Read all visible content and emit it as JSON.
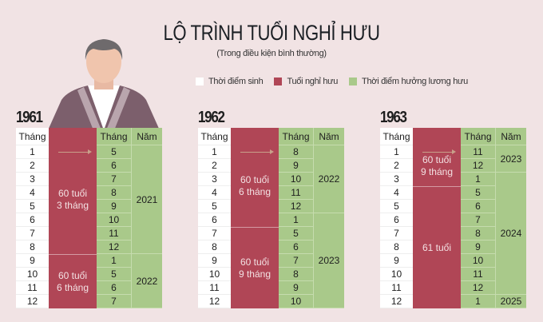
{
  "title": "LỘ TRÌNH TUỔI NGHỈ HƯU",
  "subtitle": "(Trong điều kiện bình thường)",
  "legend": [
    {
      "label": "Thời điểm sinh",
      "color": "#ffffff"
    },
    {
      "label": "Tuổi nghỉ hưu",
      "color": "#b04656"
    },
    {
      "label": "Thời điểm hưởng lương hưu",
      "color": "#a9c98a"
    }
  ],
  "headers": {
    "birth_month": "Tháng",
    "pension_month": "Tháng",
    "pension_year": "Năm"
  },
  "tables": [
    {
      "year": "1961",
      "birth_months": [
        "1",
        "2",
        "3",
        "4",
        "5",
        "6",
        "7",
        "8",
        "9",
        "10",
        "11",
        "12"
      ],
      "pension_months": [
        "5",
        "6",
        "7",
        "8",
        "9",
        "10",
        "11",
        "12",
        "1",
        "5",
        "6",
        "7"
      ],
      "ages": [
        {
          "label": "60 tuổi 3 tháng",
          "rows": 8
        },
        {
          "label": "60 tuổi 6 tháng",
          "rows": 4
        }
      ],
      "years": [
        {
          "label": "2021",
          "rows": 8
        },
        {
          "label": "2022",
          "rows": 4
        }
      ]
    },
    {
      "year": "1962",
      "birth_months": [
        "1",
        "2",
        "3",
        "4",
        "5",
        "6",
        "7",
        "8",
        "9",
        "10",
        "11",
        "12"
      ],
      "pension_months": [
        "8",
        "9",
        "10",
        "11",
        "12",
        "1",
        "5",
        "6",
        "7",
        "8",
        "9",
        "10"
      ],
      "ages": [
        {
          "label": "60 tuổi 6 tháng",
          "rows": 6
        },
        {
          "label": "60 tuổi 9 tháng",
          "rows": 6
        }
      ],
      "years": [
        {
          "label": "2022",
          "rows": 5
        },
        {
          "label": "2023",
          "rows": 7
        }
      ]
    },
    {
      "year": "1963",
      "birth_months": [
        "1",
        "2",
        "3",
        "4",
        "5",
        "6",
        "7",
        "8",
        "9",
        "10",
        "11",
        "12"
      ],
      "pension_months": [
        "11",
        "12",
        "1",
        "5",
        "6",
        "7",
        "8",
        "9",
        "10",
        "11",
        "12",
        "1"
      ],
      "ages": [
        {
          "label": "60 tuổi 9 tháng",
          "rows": 3
        },
        {
          "label": "61 tuổi",
          "rows": 9
        }
      ],
      "years": [
        {
          "label": "2023",
          "rows": 2
        },
        {
          "label": "2024",
          "rows": 9
        },
        {
          "label": "2025",
          "rows": 1
        }
      ]
    }
  ]
}
